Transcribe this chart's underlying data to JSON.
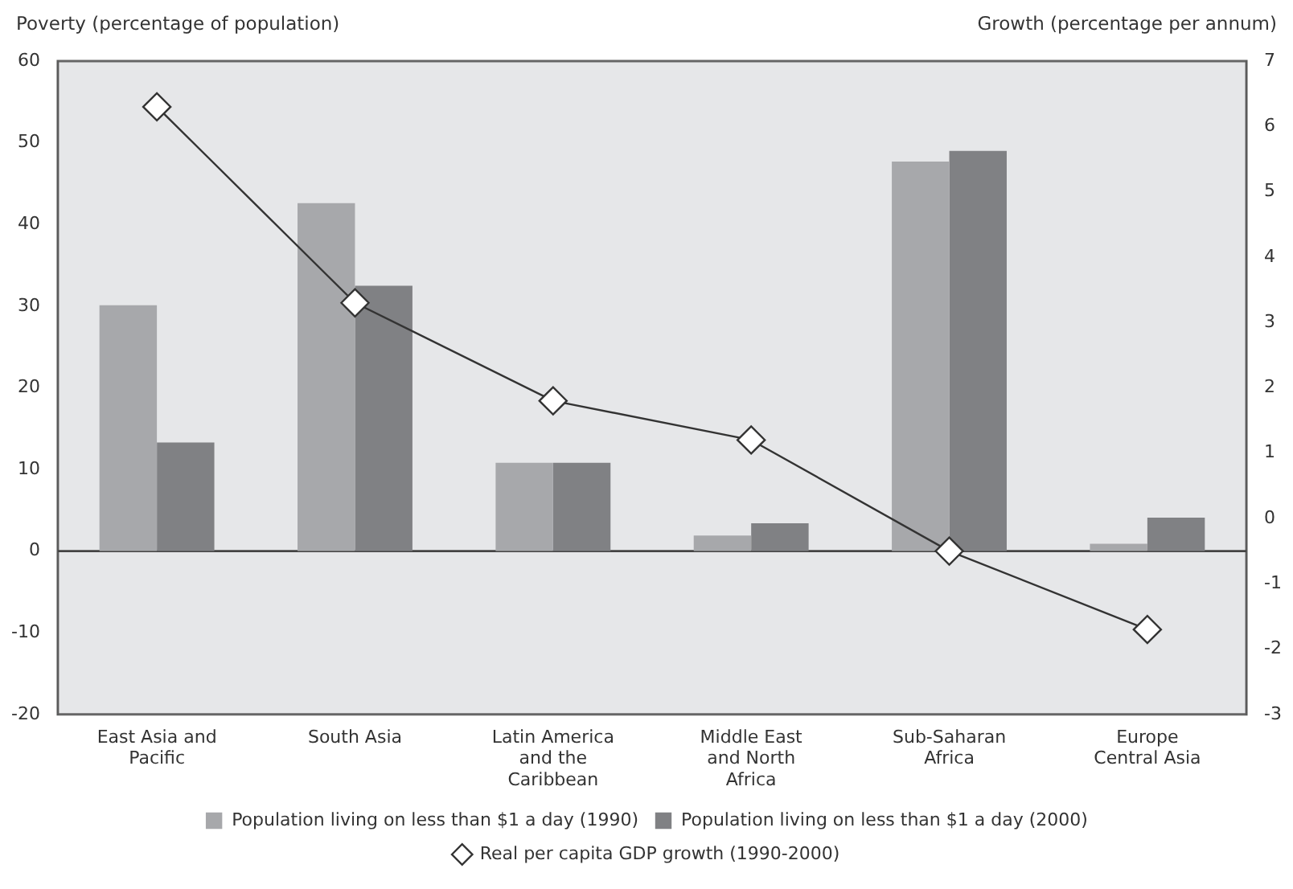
{
  "chart_data": {
    "type": "bar",
    "ylabel": "Poverty (percentage of population)",
    "y2label": "Growth (percentage per annum)",
    "categories": [
      "East Asia and Pacific",
      "South Asia",
      "Latin America and the Caribbean",
      "Middle East and North Africa",
      "Sub-Saharan Africa",
      "Europe Central Asia"
    ],
    "series": [
      {
        "name": "Population living on less than $1 a day (1990)",
        "color": "#a7a8ab",
        "values": [
          30.1,
          42.6,
          10.8,
          1.9,
          47.7,
          0.9
        ]
      },
      {
        "name": "Population living on less than $1 a day (2000)",
        "color": "#808184",
        "values": [
          13.3,
          32.5,
          10.8,
          3.4,
          49.0,
          4.1
        ]
      },
      {
        "name": "Real per capita GDP growth (1990-2000)",
        "type": "line",
        "axis": "y2",
        "color": "#333333",
        "marker": "diamond",
        "values": [
          6.3,
          3.3,
          1.8,
          1.2,
          -0.5,
          -1.7
        ]
      }
    ],
    "ylim": [
      -20,
      60
    ],
    "yticks": [
      -20,
      -10,
      0,
      10,
      20,
      30,
      40,
      50,
      60
    ],
    "y2lim": [
      -3,
      7
    ],
    "y2ticks": [
      -3,
      -2,
      -1,
      0,
      1,
      2,
      3,
      4,
      5,
      6,
      7
    ],
    "ref_lines": [
      {
        "axis": "y",
        "value": 0,
        "color": "#444444"
      }
    ],
    "grid": false,
    "legend": "bottom"
  }
}
